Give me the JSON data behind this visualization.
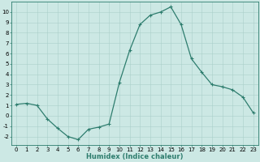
{
  "x": [
    0,
    1,
    2,
    3,
    4,
    5,
    6,
    7,
    8,
    9,
    10,
    11,
    12,
    13,
    14,
    15,
    16,
    17,
    18,
    19,
    20,
    21,
    22,
    23
  ],
  "y": [
    1.1,
    1.2,
    1.0,
    -0.3,
    -1.2,
    -2.0,
    -2.3,
    -1.3,
    -1.1,
    -0.8,
    3.2,
    6.3,
    8.8,
    9.7,
    10.0,
    10.5,
    8.8,
    5.5,
    4.2,
    3.0,
    2.8,
    2.5,
    1.8,
    0.3
  ],
  "line_color": "#2e7d6e",
  "marker": "+",
  "markersize": 3.5,
  "markeredgewidth": 0.8,
  "linewidth": 0.9,
  "bg_color": "#cce8e4",
  "grid_color": "#aacfca",
  "xlabel": "Humidex (Indice chaleur)",
  "xlabel_fontsize": 6,
  "xlabel_weight": "bold",
  "ylim": [
    -2.8,
    11.0
  ],
  "xlim": [
    -0.5,
    23.5
  ],
  "yticks": [
    -2,
    -1,
    0,
    1,
    2,
    3,
    4,
    5,
    6,
    7,
    8,
    9,
    10
  ],
  "xticks": [
    0,
    1,
    2,
    3,
    4,
    5,
    6,
    7,
    8,
    9,
    10,
    11,
    12,
    13,
    14,
    15,
    16,
    17,
    18,
    19,
    20,
    21,
    22,
    23
  ],
  "tick_fontsize": 5.0,
  "spine_color": "#2e7d6e"
}
